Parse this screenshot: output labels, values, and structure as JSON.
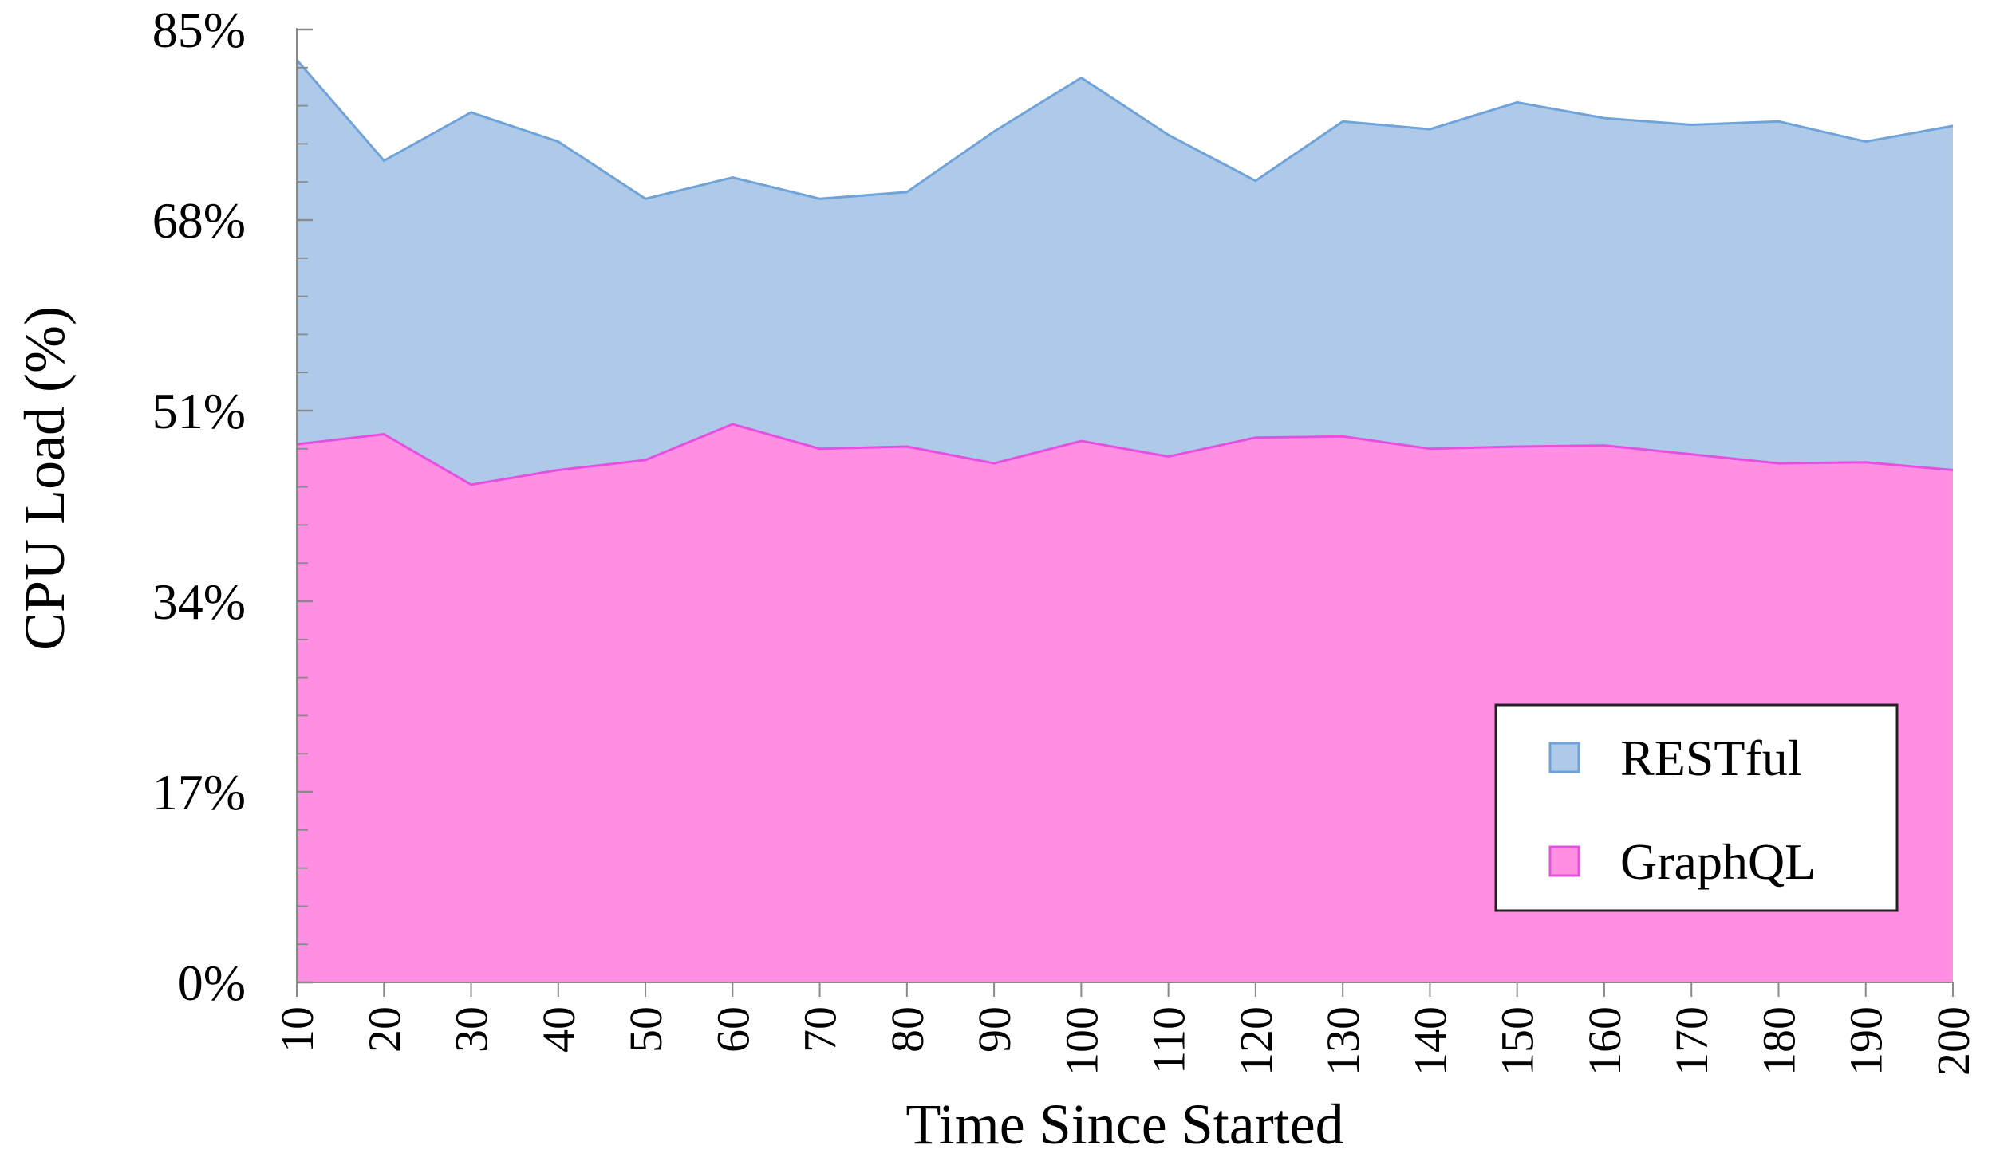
{
  "chart_data": {
    "type": "area",
    "stacked": false,
    "xlabel": "Time Since Started",
    "ylabel": "CPU Load (%)",
    "x": [
      10,
      20,
      30,
      40,
      50,
      60,
      70,
      80,
      90,
      100,
      110,
      120,
      130,
      140,
      150,
      160,
      170,
      180,
      190,
      200
    ],
    "xticks": [
      "10",
      "20",
      "30",
      "40",
      "50",
      "60",
      "70",
      "80",
      "90",
      "100",
      "110",
      "120",
      "130",
      "140",
      "150",
      "160",
      "170",
      "180",
      "190",
      "200"
    ],
    "ylim": [
      0,
      85
    ],
    "yticks": [
      0,
      17,
      34,
      51,
      68,
      85
    ],
    "ytick_labels": [
      "0%",
      "17%",
      "34%",
      "51%",
      "68%",
      "85%"
    ],
    "grid": false,
    "legend_position": "bottom-right",
    "series": [
      {
        "name": "RESTful",
        "color_fill": "#aecae8",
        "color_line": "#6fa3d9",
        "values": [
          82.3,
          73.3,
          77.6,
          75.0,
          69.9,
          71.8,
          69.9,
          70.5,
          75.9,
          80.7,
          75.6,
          71.5,
          76.8,
          76.1,
          78.5,
          77.1,
          76.5,
          76.8,
          75.0,
          76.4
        ]
      },
      {
        "name": "GraphQL",
        "color_fill": "#ff8fe2",
        "color_line": "#e64fe0",
        "values": [
          48.0,
          48.9,
          44.4,
          45.7,
          46.6,
          49.8,
          47.6,
          47.8,
          46.3,
          48.3,
          46.9,
          48.6,
          48.7,
          47.6,
          47.8,
          47.9,
          47.1,
          46.3,
          46.4,
          45.7
        ]
      }
    ]
  }
}
